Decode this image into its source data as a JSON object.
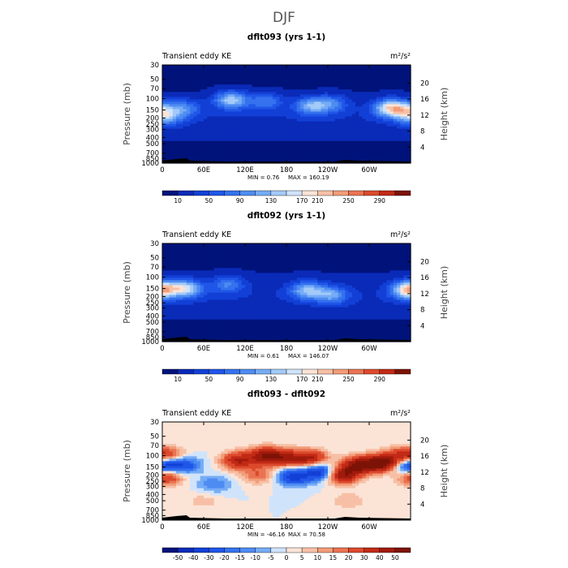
{
  "figure": {
    "title": "DJF"
  },
  "chart_data": [
    {
      "type": "heatmap",
      "title": "dflt093 (yrs 1-1)",
      "subtitle": "Transient eddy KE",
      "units": "m²/s²",
      "ylabel": "Pressure (mb)",
      "y2label": "Height (km)",
      "x_ticks": [
        "0",
        "60E",
        "120E",
        "180",
        "120W",
        "60W"
      ],
      "x_tick_values": [
        0,
        60,
        120,
        180,
        240,
        300
      ],
      "xlim": [
        0,
        360
      ],
      "y_ticks": [
        "30",
        "50",
        "70",
        "100",
        "150",
        "200",
        "250",
        "300",
        "400",
        "500",
        "700",
        "850",
        "1000"
      ],
      "y_tick_values": [
        30,
        50,
        70,
        100,
        150,
        200,
        250,
        300,
        400,
        500,
        700,
        850,
        1000
      ],
      "ylim": [
        1000,
        30
      ],
      "y_scale": "log",
      "y2_ticks": [
        "4",
        "8",
        "12",
        "16",
        "20"
      ],
      "y2_tick_values": [
        4,
        8,
        12,
        16,
        20
      ],
      "min_text": "MIN =    0.76",
      "max_text": "MAX = 160.19",
      "min": 0.76,
      "max": 160.19,
      "colorbar": {
        "levels": [
          10,
          30,
          50,
          70,
          90,
          110,
          130,
          150,
          170,
          190,
          210,
          230,
          250,
          270,
          290
        ],
        "labels": [
          "10",
          "50",
          "90",
          "130",
          "170",
          "210",
          "250",
          "290"
        ],
        "colors": [
          "#00137a",
          "#0a2ab8",
          "#1240d6",
          "#2056e8",
          "#3472ee",
          "#4f8cf2",
          "#76acf6",
          "#a3caf9",
          "#cfe3fb",
          "#fbe3d6",
          "#f7c0a6",
          "#f29c78",
          "#ea7352",
          "#dc4a2c",
          "#c22a16",
          "#7d1306"
        ]
      },
      "centers": [
        {
          "lon": 6,
          "p": 190,
          "v": 110
        },
        {
          "lon": 32,
          "p": 140,
          "v": 90
        },
        {
          "lon": 100,
          "p": 105,
          "v": 150
        },
        {
          "lon": 150,
          "p": 110,
          "v": 90
        },
        {
          "lon": 215,
          "p": 130,
          "v": 120
        },
        {
          "lon": 245,
          "p": 120,
          "v": 95
        },
        {
          "lon": 330,
          "p": 140,
          "v": 160
        },
        {
          "lon": 352,
          "p": 150,
          "v": 100
        }
      ]
    },
    {
      "type": "heatmap",
      "title": "dflt092 (yrs 1-1)",
      "subtitle": "Transient eddy KE",
      "units": "m²/s²",
      "ylabel": "Pressure (mb)",
      "y2label": "Height (km)",
      "x_ticks": [
        "0",
        "60E",
        "120E",
        "180",
        "120W",
        "60W"
      ],
      "x_tick_values": [
        0,
        60,
        120,
        180,
        240,
        300
      ],
      "xlim": [
        0,
        360
      ],
      "y_ticks": [
        "30",
        "50",
        "70",
        "100",
        "150",
        "200",
        "250",
        "300",
        "400",
        "500",
        "700",
        "850",
        "1000"
      ],
      "y_tick_values": [
        30,
        50,
        70,
        100,
        150,
        200,
        250,
        300,
        400,
        500,
        700,
        850,
        1000
      ],
      "ylim": [
        1000,
        30
      ],
      "y_scale": "log",
      "y2_ticks": [
        "4",
        "8",
        "12",
        "16",
        "20"
      ],
      "y2_tick_values": [
        4,
        8,
        12,
        16,
        20
      ],
      "min_text": "MIN =    0.61",
      "max_text": "MAX = 146.07",
      "min": 0.61,
      "max": 146.07,
      "colorbar": {
        "levels": [
          10,
          30,
          50,
          70,
          90,
          110,
          130,
          150,
          170,
          190,
          210,
          230,
          250,
          270,
          290
        ],
        "labels": [
          "10",
          "50",
          "90",
          "130",
          "170",
          "210",
          "250",
          "290"
        ],
        "colors": [
          "#00137a",
          "#0a2ab8",
          "#1240d6",
          "#2056e8",
          "#3472ee",
          "#4f8cf2",
          "#76acf6",
          "#a3caf9",
          "#cfe3fb",
          "#fbe3d6",
          "#f7c0a6",
          "#f29c78",
          "#ea7352",
          "#dc4a2c",
          "#c22a16",
          "#7d1306"
        ]
      },
      "centers": [
        {
          "lon": 5,
          "p": 150,
          "v": 90
        },
        {
          "lon": 35,
          "p": 150,
          "v": 140
        },
        {
          "lon": 95,
          "p": 130,
          "v": 90
        },
        {
          "lon": 210,
          "p": 160,
          "v": 130
        },
        {
          "lon": 245,
          "p": 190,
          "v": 110
        },
        {
          "lon": 355,
          "p": 160,
          "v": 140
        }
      ]
    },
    {
      "type": "heatmap",
      "title": "dflt093 - dflt092",
      "subtitle": "Transient eddy KE",
      "units": "m²/s²",
      "ylabel": "Pressure (mb)",
      "y2label": "Height (km)",
      "x_ticks": [
        "0",
        "60E",
        "120E",
        "180",
        "120W",
        "60W"
      ],
      "x_tick_values": [
        0,
        60,
        120,
        180,
        240,
        300
      ],
      "xlim": [
        0,
        360
      ],
      "y_ticks": [
        "30",
        "50",
        "70",
        "100",
        "150",
        "200",
        "250",
        "300",
        "400",
        "500",
        "700",
        "850",
        "1000"
      ],
      "y_tick_values": [
        30,
        50,
        70,
        100,
        150,
        200,
        250,
        300,
        400,
        500,
        700,
        850,
        1000
      ],
      "ylim": [
        1000,
        30
      ],
      "y_scale": "log",
      "y2_ticks": [
        "4",
        "8",
        "12",
        "16",
        "20"
      ],
      "y2_tick_values": [
        4,
        8,
        12,
        16,
        20
      ],
      "min_text": "MIN = -46.16",
      "max_text": "MAX =  70.58",
      "min": -46.16,
      "max": 70.58,
      "colorbar": {
        "levels": [
          -50,
          -40,
          -30,
          -20,
          -15,
          -10,
          -5,
          0,
          5,
          10,
          15,
          20,
          30,
          40,
          50
        ],
        "labels": [
          "-50",
          "-40",
          "-30",
          "-20",
          "-15",
          "-10",
          "-5",
          "0",
          "5",
          "10",
          "15",
          "20",
          "30",
          "40",
          "50"
        ],
        "colors": [
          "#00137a",
          "#0a2ab8",
          "#1240d6",
          "#2056e8",
          "#3472ee",
          "#4f8cf2",
          "#76acf6",
          "#cfe3fb",
          "#fbe3d6",
          "#f7c0a6",
          "#f29c78",
          "#ea7352",
          "#dc4a2c",
          "#c22a16",
          "#a01b0c",
          "#7d1306"
        ]
      },
      "centers": [
        {
          "lon": 5,
          "p": 210,
          "v": 35
        },
        {
          "lon": 12,
          "p": 100,
          "v": 20
        },
        {
          "lon": 5,
          "p": 140,
          "v": -30
        },
        {
          "lon": 32,
          "p": 140,
          "v": -25
        },
        {
          "lon": 75,
          "p": 280,
          "v": -15
        },
        {
          "lon": 110,
          "p": 120,
          "v": 40
        },
        {
          "lon": 150,
          "p": 100,
          "v": 45
        },
        {
          "lon": 140,
          "p": 200,
          "v": 20
        },
        {
          "lon": 180,
          "p": 110,
          "v": 35
        },
        {
          "lon": 190,
          "p": 210,
          "v": -35
        },
        {
          "lon": 215,
          "p": 110,
          "v": 40
        },
        {
          "lon": 230,
          "p": 180,
          "v": -40
        },
        {
          "lon": 260,
          "p": 200,
          "v": 50
        },
        {
          "lon": 285,
          "p": 140,
          "v": 50
        },
        {
          "lon": 320,
          "p": 130,
          "v": 60
        },
        {
          "lon": 350,
          "p": 100,
          "v": 30
        },
        {
          "lon": 350,
          "p": 150,
          "v": -20
        },
        {
          "lon": 270,
          "p": 500,
          "v": 10
        },
        {
          "lon": 60,
          "p": 500,
          "v": 8
        }
      ]
    }
  ]
}
